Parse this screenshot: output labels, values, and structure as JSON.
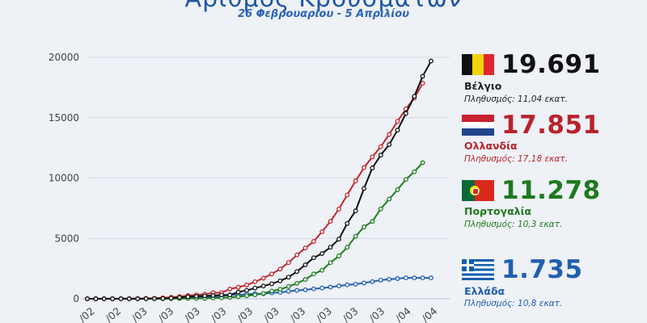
{
  "header": {
    "title": "Αριθμός Κρουσμάτων",
    "subtitle": "26 Φεβρουαρίου - 5 Απριλίου"
  },
  "chart_data": {
    "type": "line",
    "x_start": "2020-02-26",
    "x_end": "2020-04-05",
    "x_tick_labels": [
      "/02",
      "/02",
      "/03",
      "/03",
      "/03",
      "/03",
      "/03",
      "/03",
      "/03",
      "/03",
      "/03",
      "/03",
      "/04",
      "/04"
    ],
    "y_ticks": [
      0,
      5000,
      10000,
      15000,
      20000
    ],
    "ylim": [
      0,
      20000
    ],
    "grid": true,
    "series": [
      {
        "name": "Βέλγιο",
        "color": "#111111",
        "values": [
          0,
          0,
          1,
          1,
          1,
          2,
          2,
          8,
          13,
          23,
          50,
          109,
          169,
          200,
          239,
          267,
          314,
          314,
          559,
          689,
          886,
          1058,
          1243,
          1486,
          1795,
          2257,
          2815,
          3401,
          3743,
          4269,
          4937,
          6235,
          7284,
          9134,
          10836,
          11899,
          12775,
          13964,
          15348,
          16770,
          18431,
          19691
        ]
      },
      {
        "name": "Ολλανδία",
        "color": "#c0272d",
        "values": [
          0,
          0,
          1,
          2,
          7,
          10,
          18,
          24,
          38,
          82,
          128,
          188,
          265,
          321,
          382,
          503,
          503,
          806,
          962,
          1135,
          1413,
          1705,
          2051,
          2460,
          2994,
          3631,
          4204,
          4749,
          5560,
          6412,
          7431,
          8603,
          9762,
          10866,
          11750,
          12595,
          13614,
          14697,
          15723,
          16627,
          17851
        ]
      },
      {
        "name": "Πορτογαλία",
        "color": "#1e7d1e",
        "values": [
          0,
          0,
          0,
          0,
          0,
          0,
          2,
          4,
          6,
          9,
          13,
          21,
          30,
          30,
          41,
          59,
          78,
          112,
          169,
          245,
          331,
          448,
          642,
          785,
          1020,
          1280,
          1600,
          2060,
          2362,
          2995,
          3544,
          4268,
          5170,
          5962,
          6408,
          7443,
          8251,
          9034,
          9886,
          10524,
          11278
        ]
      },
      {
        "name": "Ελλάδα",
        "color": "#1f5fb0",
        "values": [
          3,
          4,
          4,
          7,
          7,
          7,
          9,
          31,
          45,
          46,
          73,
          73,
          89,
          99,
          99,
          190,
          228,
          331,
          331,
          387,
          418,
          418,
          495,
          530,
          624,
          695,
          743,
          821,
          892,
          966,
          1061,
          1156,
          1212,
          1314,
          1415,
          1544,
          1613,
          1673,
          1735,
          1735,
          1735,
          1735
        ]
      }
    ]
  },
  "panel": {
    "items": [
      {
        "value": "19.691",
        "name": "Βέλγιο",
        "population": "Πληθυσμός: 11,04 εκατ.",
        "color": "#111111",
        "name_color": "#222222",
        "flag_icon": "belgium-flag-icon"
      },
      {
        "value": "17.851",
        "name": "Ολλανδία",
        "population": "Πληθυσμός: 17,18 εκατ.",
        "color": "#b8232b",
        "name_color": "#b8232b",
        "flag_icon": "netherlands-flag-icon"
      },
      {
        "value": "11.278",
        "name": "Πορτογαλία",
        "population": "Πληθυσμός: 10,3 εκατ.",
        "color": "#1d7a1d",
        "name_color": "#1d7a1d",
        "flag_icon": "portugal-flag-icon"
      },
      {
        "value": "1.735",
        "name": "Ελλάδα",
        "population": "Πληθυσμός: 10,8 εκατ.",
        "color": "#1f5fb0",
        "name_color": "#1f5fb0",
        "flag_icon": "greece-flag-icon"
      }
    ]
  }
}
